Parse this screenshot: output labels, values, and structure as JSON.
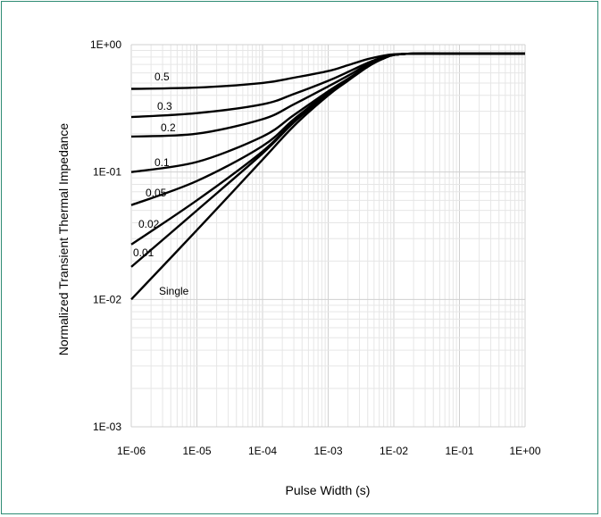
{
  "chart_data": {
    "type": "line",
    "title": "",
    "xlabel": "Pulse Width (s)",
    "ylabel": "Normalized  Transient Thermal Impedance",
    "x_scale": "log",
    "y_scale": "log",
    "xlim": [
      1e-06,
      1
    ],
    "ylim": [
      0.001,
      1
    ],
    "grid": true,
    "legend": "none",
    "x_tick_labels": [
      "1E-06",
      "1E-05",
      "1E-04",
      "1E-03",
      "1E-02",
      "1E-01",
      "1E+00"
    ],
    "y_tick_labels": [
      "1E+00",
      "1E-01",
      "1E-02",
      "1E-03"
    ],
    "line_color": "#000000",
    "grid_color": "#d9d9d9",
    "frame_color": "#2e8b74",
    "series": [
      {
        "name": "0.5",
        "x": [
          1e-06,
          1e-05,
          0.0001,
          0.0003,
          0.001,
          0.002,
          0.004,
          0.007,
          0.01,
          0.02,
          0.1,
          1
        ],
        "values": [
          0.45,
          0.46,
          0.5,
          0.55,
          0.62,
          0.69,
          0.77,
          0.82,
          0.84,
          0.85,
          0.85,
          0.85
        ]
      },
      {
        "name": "0.3",
        "x": [
          1e-06,
          1e-05,
          0.0001,
          0.0003,
          0.001,
          0.002,
          0.004,
          0.007,
          0.01,
          0.02,
          0.1,
          1
        ],
        "values": [
          0.27,
          0.29,
          0.34,
          0.41,
          0.52,
          0.61,
          0.72,
          0.8,
          0.83,
          0.85,
          0.85,
          0.85
        ]
      },
      {
        "name": "0.2",
        "x": [
          1e-06,
          1e-05,
          0.0001,
          0.0003,
          0.001,
          0.002,
          0.004,
          0.007,
          0.01,
          0.02,
          0.1,
          1
        ],
        "values": [
          0.19,
          0.2,
          0.26,
          0.34,
          0.47,
          0.57,
          0.7,
          0.79,
          0.83,
          0.85,
          0.85,
          0.85
        ]
      },
      {
        "name": "0.1",
        "x": [
          1e-06,
          1e-05,
          0.0001,
          0.0003,
          0.001,
          0.002,
          0.004,
          0.007,
          0.01,
          0.02,
          0.1,
          1
        ],
        "values": [
          0.1,
          0.12,
          0.19,
          0.28,
          0.43,
          0.54,
          0.68,
          0.78,
          0.83,
          0.85,
          0.85,
          0.85
        ]
      },
      {
        "name": "0.05",
        "x": [
          1e-06,
          1e-05,
          0.0001,
          0.0003,
          0.001,
          0.002,
          0.004,
          0.007,
          0.01,
          0.02,
          0.1,
          1
        ],
        "values": [
          0.055,
          0.085,
          0.16,
          0.26,
          0.42,
          0.53,
          0.68,
          0.78,
          0.83,
          0.85,
          0.85,
          0.85
        ]
      },
      {
        "name": "0.02",
        "x": [
          1e-06,
          1e-05,
          0.0001,
          0.0003,
          0.001,
          0.002,
          0.004,
          0.007,
          0.01,
          0.02,
          0.1,
          1
        ],
        "values": [
          0.027,
          0.06,
          0.145,
          0.25,
          0.41,
          0.53,
          0.68,
          0.78,
          0.83,
          0.85,
          0.85,
          0.85
        ]
      },
      {
        "name": "0.01",
        "x": [
          1e-06,
          1e-05,
          0.0001,
          0.0003,
          0.001,
          0.002,
          0.004,
          0.007,
          0.01,
          0.02,
          0.1,
          1
        ],
        "values": [
          0.018,
          0.05,
          0.14,
          0.245,
          0.41,
          0.53,
          0.68,
          0.78,
          0.83,
          0.85,
          0.85,
          0.85
        ]
      },
      {
        "name": "Single",
        "x": [
          1e-06,
          1e-05,
          0.0001,
          0.0003,
          0.001,
          0.002,
          0.004,
          0.007,
          0.01,
          0.02,
          0.1,
          1
        ],
        "values": [
          0.01,
          0.035,
          0.125,
          0.23,
          0.4,
          0.52,
          0.67,
          0.78,
          0.83,
          0.85,
          0.85,
          0.85
        ]
      }
    ]
  }
}
